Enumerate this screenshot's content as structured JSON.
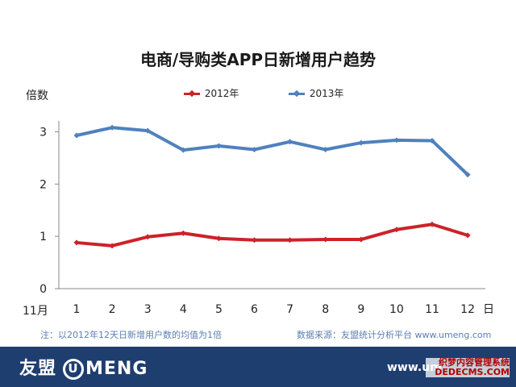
{
  "chart_data": {
    "type": "line",
    "title": "电商/导购类APP日新增用户趋势",
    "ylabel": "倍数",
    "x_start_label": "11月",
    "x_unit_label": "日",
    "categories": [
      "1",
      "2",
      "3",
      "4",
      "5",
      "6",
      "7",
      "8",
      "9",
      "10",
      "11",
      "12"
    ],
    "yticks": [
      "0",
      "1",
      "2",
      "3"
    ],
    "ylim": [
      0,
      3.3
    ],
    "grid": false,
    "legend_position": "top",
    "series": [
      {
        "name": "2012年",
        "color": "#cc2229",
        "values": [
          0.88,
          0.82,
          0.99,
          1.06,
          0.96,
          0.93,
          0.93,
          0.94,
          0.94,
          1.13,
          1.23,
          1.02
        ]
      },
      {
        "name": "2013年",
        "color": "#4f81bd",
        "values": [
          2.93,
          3.08,
          3.02,
          2.65,
          2.73,
          2.66,
          2.81,
          2.66,
          2.79,
          2.84,
          2.83,
          2.18
        ]
      }
    ]
  },
  "footer": {
    "note": "注：以2012年12天日新增用户数的均值为1倍",
    "source": "数据来源：友盟统计分析平台 www.umeng.com"
  },
  "brand": {
    "logo_cn": "友盟",
    "logo_u": "U",
    "logo_en": "MENG",
    "url": "www.um",
    "watermark_line1": "织梦内容管理系统",
    "watermark_line2": "DEDECMS.COM"
  }
}
